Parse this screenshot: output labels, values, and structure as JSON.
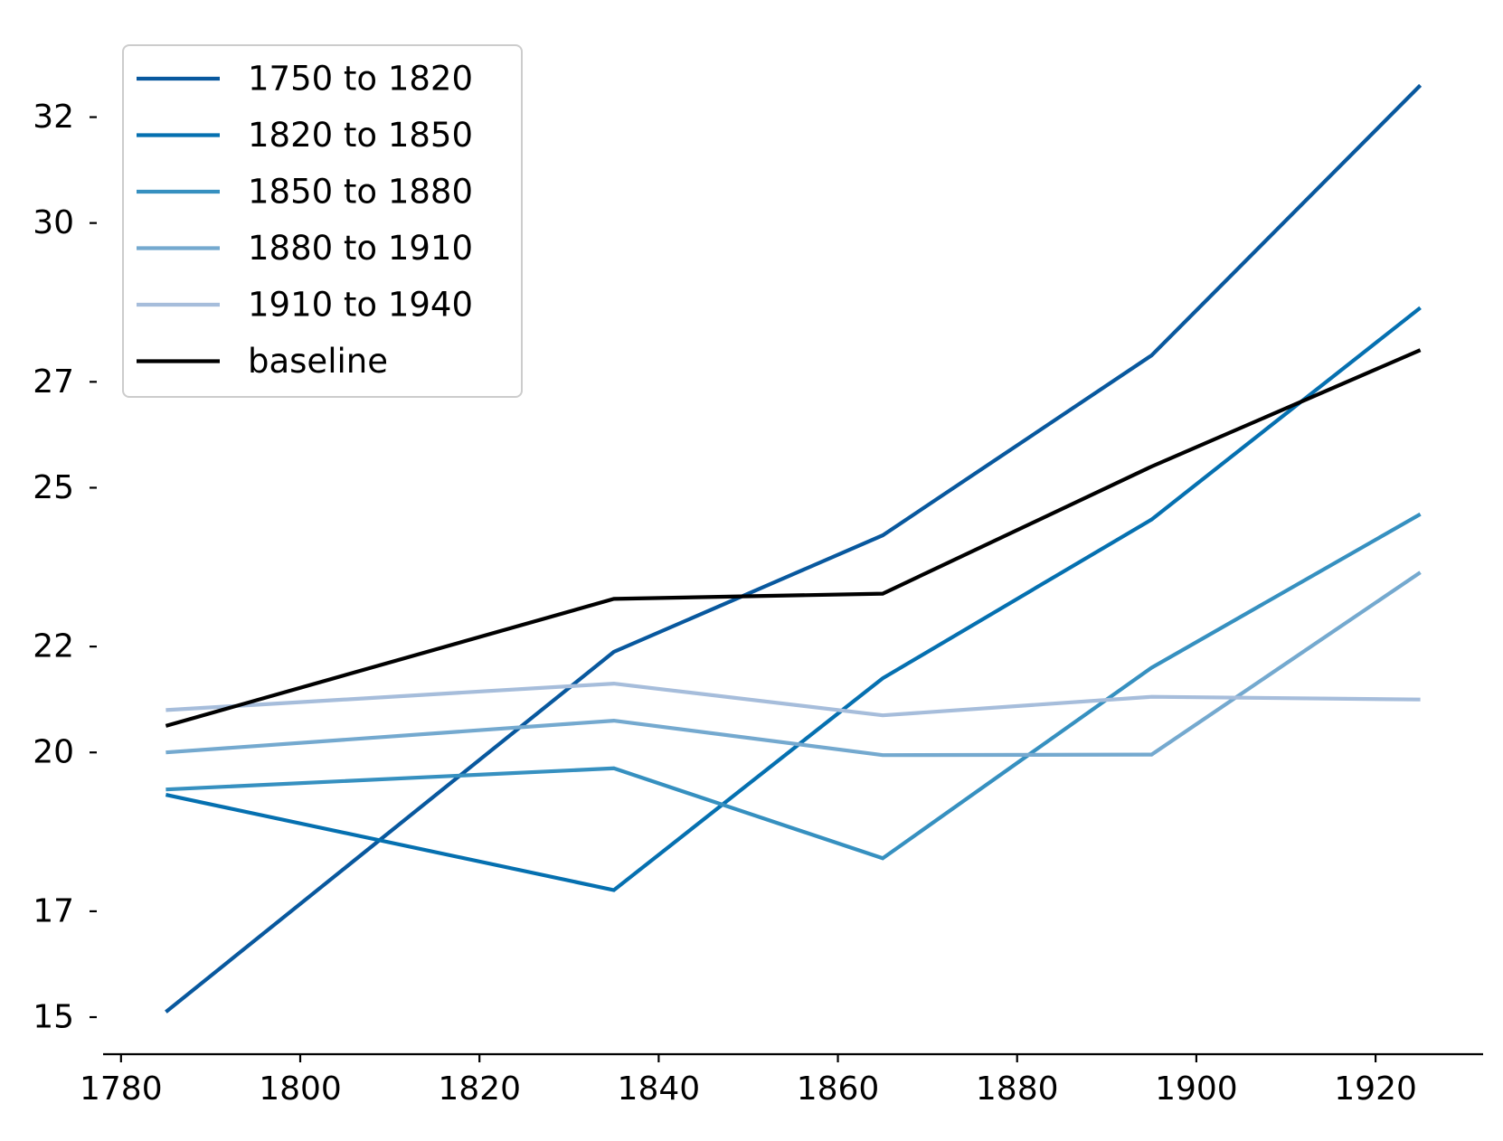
{
  "chart_data": {
    "type": "line",
    "title": "",
    "xlabel": "",
    "ylabel": "",
    "x": [
      1785,
      1835,
      1865,
      1895,
      1925
    ],
    "xlim": [
      1778,
      1932
    ],
    "ylim": [
      14.3,
      33.7
    ],
    "x_ticks": [
      1780,
      1800,
      1820,
      1840,
      1860,
      1880,
      1900,
      1920
    ],
    "x_tick_labels": [
      "1780",
      "1800",
      "1820",
      "1840",
      "1860",
      "1880",
      "1900",
      "1920"
    ],
    "y_ticks": [
      15,
      17,
      20,
      22,
      25,
      27,
      30,
      32
    ],
    "y_tick_labels": [
      "15",
      "17",
      "20",
      "22",
      "25",
      "27",
      "30",
      "32"
    ],
    "grid": false,
    "legend_position": "top-left",
    "series": [
      {
        "name": "1750 to 1820",
        "color": "#08589e",
        "values": [
          15.1,
          21.9,
          24.1,
          27.5,
          32.6
        ]
      },
      {
        "name": "1820 to 1850",
        "color": "#0570b0",
        "values": [
          19.2,
          17.4,
          21.4,
          24.4,
          28.4
        ]
      },
      {
        "name": "1850 to 1880",
        "color": "#3690c0",
        "values": [
          19.3,
          19.7,
          18.0,
          21.6,
          24.5
        ]
      },
      {
        "name": "1880 to 1910",
        "color": "#74a9cf",
        "values": [
          20.0,
          20.6,
          19.95,
          19.96,
          23.4
        ]
      },
      {
        "name": "1910 to 1940",
        "color": "#a6bddb",
        "values": [
          20.8,
          21.3,
          20.7,
          21.05,
          21.0
        ]
      },
      {
        "name": "baseline",
        "color": "#000000",
        "values": [
          20.5,
          22.9,
          23.0,
          25.4,
          27.6
        ]
      }
    ]
  }
}
